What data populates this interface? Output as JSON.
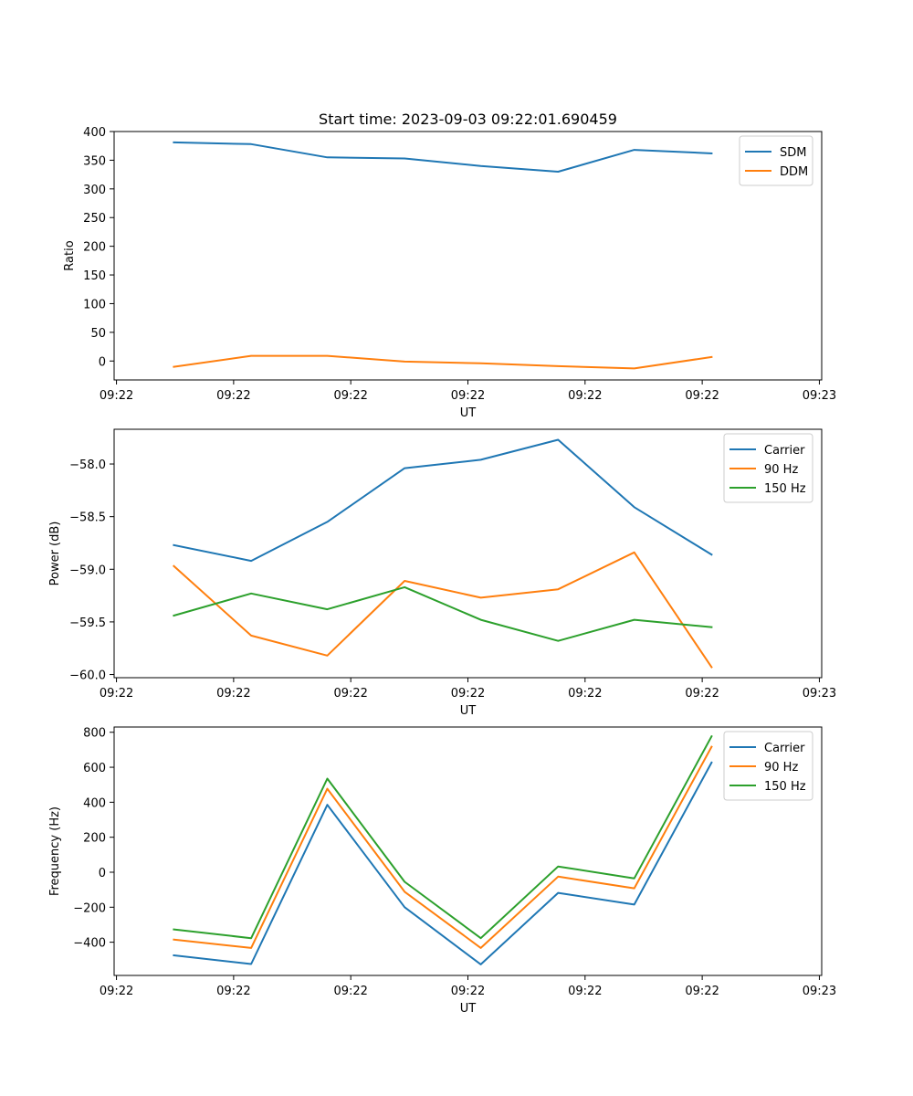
{
  "figure": {
    "title": "Start time: 2023-09-03 09:22:01.690459"
  },
  "chart_data": [
    {
      "type": "line",
      "title": "Start time: 2023-09-03 09:22:01.690459",
      "xlabel": "UT",
      "ylabel": "Ratio",
      "x_ticks": [
        "09:22",
        "09:22",
        "09:22",
        "09:22",
        "09:22",
        "09:22",
        "09:23"
      ],
      "x_tick_values": [
        0,
        1,
        2,
        3,
        4,
        5,
        6
      ],
      "xlim": [
        -0.02,
        6.02
      ],
      "x": [
        0.49,
        1.15,
        1.8,
        2.46,
        3.11,
        3.77,
        4.42,
        5.08
      ],
      "ylim": [
        -33,
        400
      ],
      "y_ticks": [
        0,
        50,
        100,
        150,
        200,
        250,
        300,
        350,
        400
      ],
      "y_tick_labels": [
        "0",
        "50",
        "100",
        "150",
        "200",
        "250",
        "300",
        "350",
        "400"
      ],
      "legend_position": "top-right",
      "series": [
        {
          "name": "SDM",
          "color": "#1f77b4",
          "values": [
            381,
            378,
            355,
            353,
            340,
            330,
            368,
            362
          ]
        },
        {
          "name": "DDM",
          "color": "#ff7f0e",
          "values": [
            -10,
            9,
            9,
            -1,
            -4,
            -9,
            -13,
            7
          ]
        }
      ]
    },
    {
      "type": "line",
      "title": "",
      "xlabel": "UT",
      "ylabel": "Power (dB)",
      "x_ticks": [
        "09:22",
        "09:22",
        "09:22",
        "09:22",
        "09:22",
        "09:22",
        "09:23"
      ],
      "x_tick_values": [
        0,
        1,
        2,
        3,
        4,
        5,
        6
      ],
      "xlim": [
        -0.02,
        6.02
      ],
      "x": [
        0.49,
        1.15,
        1.8,
        2.46,
        3.11,
        3.77,
        4.42,
        5.08
      ],
      "ylim": [
        -60.03,
        -57.67
      ],
      "y_ticks": [
        -60.0,
        -59.5,
        -59.0,
        -58.5,
        -58.0
      ],
      "y_tick_labels": [
        "−60.0",
        "−59.5",
        "−59.0",
        "−58.5",
        "−58.0"
      ],
      "legend_position": "top-right",
      "series": [
        {
          "name": "Carrier",
          "color": "#1f77b4",
          "values": [
            -58.77,
            -58.92,
            -58.55,
            -58.04,
            -57.96,
            -57.77,
            -58.41,
            -58.86
          ]
        },
        {
          "name": "90 Hz",
          "color": "#ff7f0e",
          "values": [
            -58.97,
            -59.63,
            -59.82,
            -59.11,
            -59.27,
            -59.19,
            -58.84,
            -59.93
          ]
        },
        {
          "name": "150 Hz",
          "color": "#2ca02c",
          "values": [
            -59.44,
            -59.23,
            -59.38,
            -59.17,
            -59.48,
            -59.68,
            -59.48,
            -59.55
          ]
        }
      ]
    },
    {
      "type": "line",
      "title": "",
      "xlabel": "UT",
      "ylabel": "Frequency (Hz)",
      "x_ticks": [
        "09:22",
        "09:22",
        "09:22",
        "09:22",
        "09:22",
        "09:22",
        "09:23"
      ],
      "x_tick_values": [
        0,
        1,
        2,
        3,
        4,
        5,
        6
      ],
      "xlim": [
        -0.02,
        6.02
      ],
      "x": [
        0.49,
        1.15,
        1.8,
        2.46,
        3.11,
        3.77,
        4.42,
        5.08
      ],
      "ylim": [
        -590,
        830
      ],
      "y_ticks": [
        -400,
        -200,
        0,
        200,
        400,
        600,
        800
      ],
      "y_tick_labels": [
        "−400",
        "−200",
        "0",
        "200",
        "400",
        "600",
        "800"
      ],
      "legend_position": "top-right",
      "series": [
        {
          "name": "Carrier",
          "color": "#1f77b4",
          "values": [
            -475,
            -525,
            385,
            -200,
            -527,
            -118,
            -185,
            627
          ]
        },
        {
          "name": "90 Hz",
          "color": "#ff7f0e",
          "values": [
            -385,
            -433,
            477,
            -112,
            -433,
            -25,
            -92,
            717
          ]
        },
        {
          "name": "150 Hz",
          "color": "#2ca02c",
          "values": [
            -327,
            -377,
            535,
            -55,
            -377,
            33,
            -35,
            777
          ]
        }
      ]
    }
  ]
}
